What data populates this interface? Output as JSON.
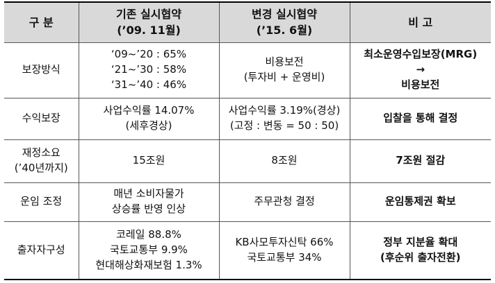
{
  "table": {
    "header": [
      [
        "구    분"
      ],
      [
        "기존 실시협약",
        "(’09. 11월)"
      ],
      [
        "변경 실시협약",
        "(’15. 6월)"
      ],
      [
        "비    고"
      ]
    ],
    "rows": [
      [
        [
          "보장방식"
        ],
        [
          "‘09~’20 : 65%",
          "‘21~’30 : 58%",
          "‘31~’40 : 46%"
        ],
        [
          "비용보전",
          "(투자비 + 운영비)"
        ],
        [
          "최소운영수입보장(MRG)",
          "→",
          "비용보전"
        ]
      ],
      [
        [
          "수익보장"
        ],
        [
          "사업수익률 14.07%",
          "(세후경상)"
        ],
        [
          "사업수익률 3.19%(경상)",
          "(고정 : 변동 = 50 : 50)"
        ],
        [
          "입찰을 통해 결정"
        ]
      ],
      [
        [
          "재정소요",
          "(’40년까지)"
        ],
        [
          "15조원"
        ],
        [
          "8조원"
        ],
        [
          "7조원 절감"
        ]
      ],
      [
        [
          "운임 조정"
        ],
        [
          "매년 소비자물가",
          "상승률 반영 인상"
        ],
        [
          "주무관청 결정"
        ],
        [
          "운임통제권 확보"
        ]
      ],
      [
        [
          "출자자구성"
        ],
        [
          "코레일 88.8%",
          "국토교통부 9.9%",
          "현대해상화재보험 1.3%"
        ],
        [
          "KB사모투자신탁 66%",
          "국토교통부 34%"
        ],
        [
          "정부 지분율 확대",
          "(후순위 출자전환)"
        ]
      ]
    ]
  }
}
